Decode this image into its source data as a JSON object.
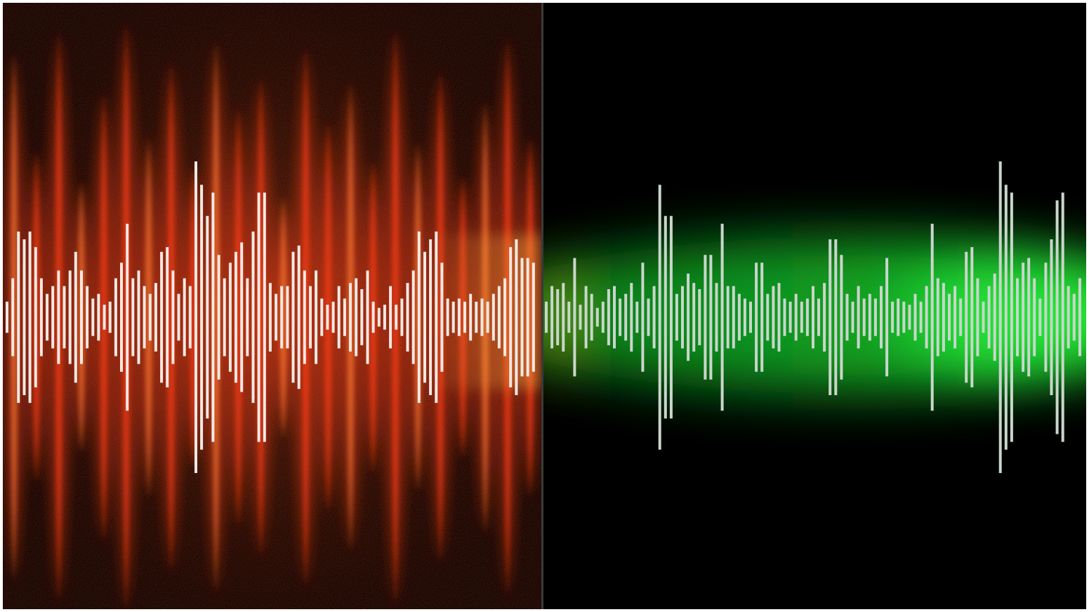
{
  "image": {
    "layout": "split",
    "left_panel": {
      "subject": "noisy-waveform",
      "glow": "red-orange",
      "colors": {
        "background": "#070100",
        "glow_primary": "#ff3a10",
        "glow_secondary": "#ff7a30",
        "bars": "#f2e8e4"
      },
      "bar_amplitudes": [
        0.1,
        0.25,
        0.55,
        0.5,
        0.55,
        0.45,
        0.25,
        0.15,
        0.2,
        0.3,
        0.2,
        0.3,
        0.42,
        0.3,
        0.2,
        0.12,
        0.15,
        0.08,
        0.1,
        0.25,
        0.35,
        0.6,
        0.25,
        0.3,
        0.2,
        0.15,
        0.22,
        0.42,
        0.45,
        0.3,
        0.15,
        0.25,
        0.2,
        1.0,
        0.85,
        0.65,
        0.8,
        0.4,
        0.25,
        0.35,
        0.42,
        0.48,
        0.25,
        0.55,
        0.8,
        0.8,
        0.22,
        0.15,
        0.2,
        0.2,
        0.42,
        0.46,
        0.3,
        0.2,
        0.3,
        0.12,
        0.08,
        0.1,
        0.2,
        0.12,
        0.22,
        0.25,
        0.18,
        0.3,
        0.1,
        0.06,
        0.08,
        0.2,
        0.08,
        0.12,
        0.22,
        0.3,
        0.55,
        0.42,
        0.5,
        0.55,
        0.35,
        0.12,
        0.1,
        0.12,
        0.1,
        0.15,
        0.1,
        0.12,
        0.1,
        0.15,
        0.2,
        0.25,
        0.45,
        0.5,
        0.38,
        0.38,
        0.35
      ],
      "flame_peaks": [
        0.88,
        0.55,
        0.95,
        0.45,
        0.75,
        0.98,
        0.6,
        0.85,
        0.5,
        0.92,
        0.7,
        0.8,
        0.4,
        0.9,
        0.65,
        0.78,
        0.52,
        0.96,
        0.58,
        0.82,
        0.47,
        0.72,
        0.93,
        0.6
      ]
    },
    "right_panel": {
      "subject": "clean-waveform",
      "glow": "green",
      "colors": {
        "background": "#000000",
        "glow_primary": "#22dd33",
        "glow_secondary": "#119922",
        "bars": "#c9d6cb"
      },
      "bar_amplitudes": [
        0.1,
        0.2,
        0.18,
        0.22,
        0.1,
        0.38,
        0.08,
        0.2,
        0.15,
        0.06,
        0.1,
        0.18,
        0.2,
        0.12,
        0.15,
        0.22,
        0.1,
        0.35,
        0.12,
        0.2,
        0.85,
        0.65,
        0.65,
        0.15,
        0.2,
        0.28,
        0.22,
        0.18,
        0.4,
        0.4,
        0.22,
        0.6,
        0.2,
        0.2,
        0.15,
        0.12,
        0.1,
        0.35,
        0.35,
        0.15,
        0.2,
        0.22,
        0.12,
        0.1,
        0.15,
        0.1,
        0.12,
        0.2,
        0.12,
        0.22,
        0.5,
        0.5,
        0.4,
        0.15,
        0.1,
        0.2,
        0.12,
        0.15,
        0.12,
        0.2,
        0.38,
        0.1,
        0.12,
        0.1,
        0.08,
        0.15,
        0.1,
        0.2,
        0.6,
        0.25,
        0.22,
        0.15,
        0.2,
        0.12,
        0.42,
        0.45,
        0.25,
        0.1,
        0.2,
        0.28,
        1.0,
        0.85,
        0.8,
        0.25,
        0.35,
        0.38,
        0.25,
        0.12,
        0.35,
        0.5,
        0.75,
        0.8,
        0.2,
        0.15,
        0.25
      ]
    }
  }
}
